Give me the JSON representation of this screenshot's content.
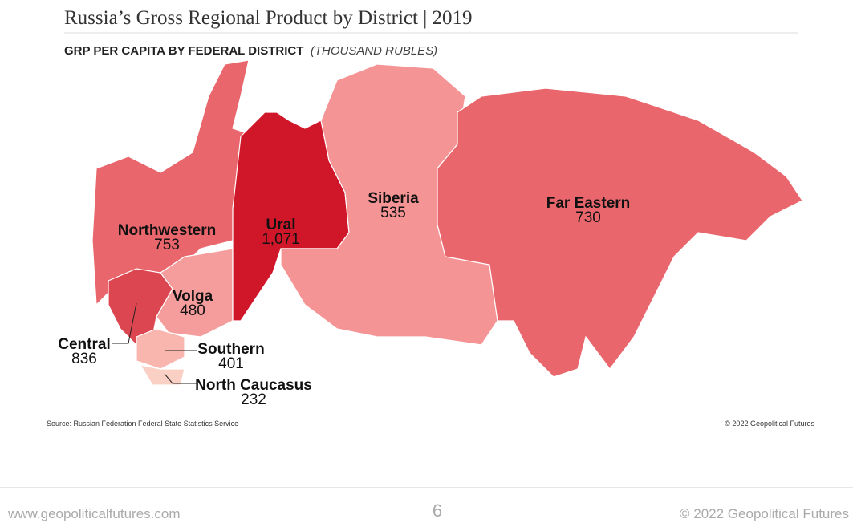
{
  "header": {
    "title": "Russia’s Gross Regional Product by District | 2019",
    "subtitle": "GRP PER CAPITA BY FEDERAL DISTRICT",
    "unit": "(THOUSAND RUBLES)"
  },
  "districts": [
    {
      "name": "Northwestern",
      "value": 753,
      "color": "#e8666c"
    },
    {
      "name": "Ural",
      "value": 1071,
      "value_label": "1,071",
      "color": "#d0172a"
    },
    {
      "name": "Siberia",
      "value": 535,
      "color": "#f59495"
    },
    {
      "name": "Far Eastern",
      "value": 730,
      "color": "#e8666c"
    },
    {
      "name": "Volga",
      "value": 480,
      "color": "#f59d9c"
    },
    {
      "name": "Central",
      "value": 836,
      "color": "#dc4650"
    },
    {
      "name": "Southern",
      "value": 401,
      "color": "#f8b6ae"
    },
    {
      "name": "North Caucasus",
      "value": 232,
      "color": "#fbd0c4"
    }
  ],
  "source": "Source: Russian Federation Federal State Statistics Service",
  "credit": "© 2022 Geopolitical Futures",
  "footer": {
    "website": "www.geopoliticalfutures.com",
    "page": "6",
    "copyright": "© 2022 Geopolitical Futures"
  }
}
